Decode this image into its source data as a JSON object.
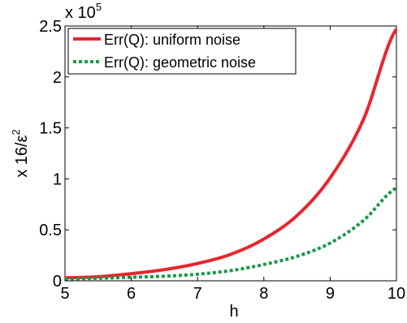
{
  "chart_data": {
    "type": "line",
    "xlabel": "h",
    "ylabel": "x 16/ε",
    "ylabel_superscript": "2",
    "multiplier_text": "x 10",
    "multiplier_exponent": "5",
    "xlim": [
      5,
      10
    ],
    "ylim": [
      0,
      2.5
    ],
    "x_ticks": [
      5,
      6,
      7,
      8,
      9,
      10
    ],
    "x_tick_labels": [
      "5",
      "6",
      "7",
      "8",
      "9",
      "10"
    ],
    "y_ticks": [
      0,
      0.5,
      1,
      1.5,
      2,
      2.5
    ],
    "y_tick_labels": [
      "0",
      "0.5",
      "1",
      "1.5",
      "2",
      "2.5"
    ],
    "grid": false,
    "legend_position": "top-left",
    "series": [
      {
        "name": "Err(Q): uniform noise",
        "color": "#e8262d",
        "style": "solid",
        "x": [
          5,
          5.5,
          6,
          6.5,
          7,
          7.5,
          8,
          8.5,
          9,
          9.5,
          10
        ],
        "y": [
          0.03,
          0.04,
          0.07,
          0.11,
          0.17,
          0.26,
          0.41,
          0.64,
          1.01,
          1.58,
          2.47
        ]
      },
      {
        "name": "Err(Q): geometric noise",
        "color": "#1a9a48",
        "style": "dotted",
        "x": [
          5,
          5.5,
          6,
          6.5,
          7,
          7.5,
          8,
          8.5,
          9,
          9.5,
          10
        ],
        "y": [
          0.02,
          0.025,
          0.035,
          0.045,
          0.065,
          0.1,
          0.16,
          0.24,
          0.37,
          0.59,
          0.91
        ]
      }
    ]
  }
}
